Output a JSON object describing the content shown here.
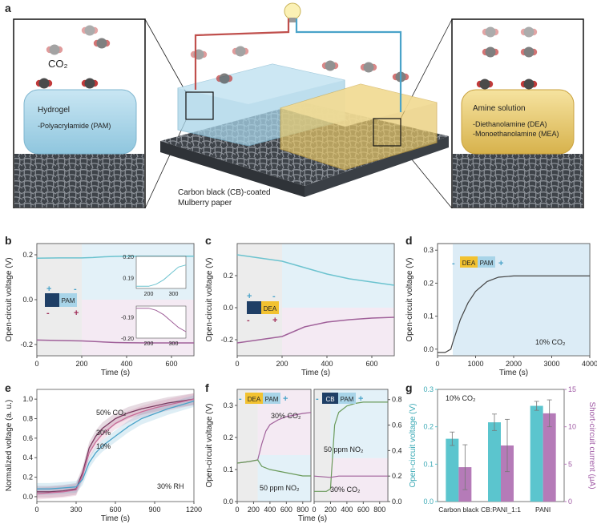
{
  "panel_labels": {
    "a": "a",
    "b": "b",
    "c": "c",
    "d": "d",
    "e": "e",
    "f": "f",
    "g": "g"
  },
  "illustration": {
    "co2_label": "CO₂",
    "hydrogel_title": "Hydrogel",
    "hydrogel_item": "-Polyacrylamide (PAM)",
    "amine_title": "Amine solution",
    "amine_item_1": "-Diethanolamine (DEA)",
    "amine_item_2": "-Monoethanolamine (MEA)",
    "substrate_label_1": "Carbon black (CB)-coated",
    "substrate_label_2": "Mulberry paper",
    "colors": {
      "hydrogel": "#a8d4e8",
      "amine": "#e8c86a",
      "fiber": "#5a5f66",
      "wire_red": "#c0504d",
      "wire_blue": "#4aa3c9"
    }
  },
  "chart_data": [
    {
      "id": "b",
      "type": "line",
      "xlabel": "Time (s)",
      "ylabel": "Open-circuit voltage (V)",
      "xlim": [
        0,
        700
      ],
      "ylim": [
        -0.25,
        0.25
      ],
      "xticks": [
        0,
        200,
        400,
        600
      ],
      "yticks": [
        -0.2,
        0.0,
        0.2
      ],
      "xtick_labels": [
        "0",
        "200",
        "400",
        "600"
      ],
      "ytick_labels": [
        "-0.2",
        "0.0",
        "0.2"
      ],
      "device_label": "PAM",
      "plus": "+",
      "minus": "-",
      "series": [
        {
          "color": "#6cc3cf",
          "x": [
            0,
            100,
            200,
            250,
            300,
            350,
            400,
            500,
            600,
            700
          ],
          "y": [
            0.185,
            0.186,
            0.186,
            0.188,
            0.191,
            0.193,
            0.194,
            0.194,
            0.194,
            0.194
          ]
        },
        {
          "color": "#a0619a",
          "x": [
            0,
            100,
            200,
            250,
            300,
            350,
            400,
            500,
            600,
            700
          ],
          "y": [
            -0.18,
            -0.182,
            -0.184,
            -0.186,
            -0.189,
            -0.191,
            -0.192,
            -0.193,
            -0.193,
            -0.193
          ]
        }
      ],
      "insets": [
        {
          "xlim": [
            150,
            350
          ],
          "ylim": [
            0.185,
            0.2
          ],
          "ytick_labels": [
            "0.19",
            "0.20"
          ],
          "yticks": [
            0.19,
            0.2
          ],
          "xticks": [
            200,
            300
          ],
          "xtick_labels": [
            "200",
            "300"
          ],
          "color": "#6cc3cf",
          "x": [
            150,
            200,
            230,
            260,
            290,
            320,
            350
          ],
          "y": [
            0.186,
            0.186,
            0.187,
            0.189,
            0.192,
            0.195,
            0.196
          ]
        },
        {
          "xlim": [
            150,
            350
          ],
          "ylim": [
            -0.2,
            -0.185
          ],
          "ytick_labels": [
            "-0.19",
            "-0.20"
          ],
          "yticks": [
            -0.19,
            -0.2
          ],
          "xticks": [
            200,
            300
          ],
          "xtick_labels": [
            "200",
            "300"
          ],
          "color": "#a0619a",
          "x": [
            150,
            200,
            230,
            260,
            290,
            320,
            350
          ],
          "y": [
            -0.186,
            -0.186,
            -0.187,
            -0.189,
            -0.192,
            -0.195,
            -0.197
          ]
        }
      ]
    },
    {
      "id": "c",
      "type": "line",
      "xlabel": "Time (s)",
      "ylabel": "Open-circuit voltage (V)",
      "xlim": [
        0,
        700
      ],
      "ylim": [
        -0.3,
        0.4
      ],
      "xticks": [
        0,
        200,
        400,
        600
      ],
      "yticks": [
        -0.2,
        0.0,
        0.2
      ],
      "xtick_labels": [
        "0",
        "200",
        "400",
        "600"
      ],
      "ytick_labels": [
        "-0.2",
        "0.0",
        "0.2"
      ],
      "device_label": "DEA",
      "plus": "+",
      "minus": "-",
      "series": [
        {
          "color": "#6cc3cf",
          "x": [
            0,
            100,
            200,
            300,
            400,
            500,
            600,
            700
          ],
          "y": [
            0.33,
            0.31,
            0.29,
            0.25,
            0.21,
            0.18,
            0.16,
            0.14
          ]
        },
        {
          "color": "#a0619a",
          "x": [
            0,
            100,
            200,
            300,
            400,
            500,
            600,
            700
          ],
          "y": [
            -0.22,
            -0.2,
            -0.18,
            -0.12,
            -0.09,
            -0.075,
            -0.065,
            -0.06
          ]
        }
      ]
    },
    {
      "id": "d",
      "type": "line",
      "xlabel": "Time (s)",
      "ylabel": "Open-circuit voltage (V)",
      "xlim": [
        0,
        4000
      ],
      "ylim": [
        -0.02,
        0.32
      ],
      "xticks": [
        0,
        1000,
        2000,
        3000,
        4000
      ],
      "yticks": [
        0.0,
        0.1,
        0.2,
        0.3
      ],
      "xtick_labels": [
        "0",
        "1000",
        "2000",
        "3000",
        "4000"
      ],
      "ytick_labels": [
        "0.0",
        "0.1",
        "0.2",
        "0.3"
      ],
      "annotation": "10% CO₂",
      "device_label_1": "DEA",
      "device_label_2": "PAM",
      "plus": "+",
      "minus": "-",
      "series": [
        {
          "color": "#444444",
          "x": [
            0,
            200,
            350,
            400,
            600,
            800,
            1000,
            1300,
            1600,
            2000,
            2500,
            3000,
            3500,
            4000
          ],
          "y": [
            -0.01,
            -0.01,
            0.0,
            0.02,
            0.09,
            0.14,
            0.175,
            0.205,
            0.218,
            0.222,
            0.222,
            0.222,
            0.222,
            0.222
          ]
        }
      ]
    },
    {
      "id": "e",
      "type": "line",
      "xlabel": "Time (s)",
      "ylabel": "Normalized voltage (a. u.)",
      "xlim": [
        0,
        1200
      ],
      "ylim": [
        -0.05,
        1.1
      ],
      "xticks": [
        0,
        300,
        600,
        900,
        1200
      ],
      "yticks": [
        0.0,
        0.2,
        0.4,
        0.6,
        0.8,
        1.0
      ],
      "xtick_labels": [
        "0",
        "300",
        "600",
        "900",
        "1200"
      ],
      "ytick_labels": [
        "0.0",
        "0.2",
        "0.4",
        "0.6",
        "0.8",
        "1.0"
      ],
      "annotation": "30% RH",
      "series": [
        {
          "name": "50% CO₂",
          "color": "#7a3a60",
          "x": [
            0,
            100,
            200,
            300,
            350,
            400,
            450,
            500,
            600,
            700,
            800,
            900,
            1000,
            1100,
            1200
          ],
          "y": [
            0.05,
            0.05,
            0.06,
            0.08,
            0.25,
            0.5,
            0.62,
            0.7,
            0.8,
            0.86,
            0.9,
            0.93,
            0.96,
            0.98,
            1.0
          ]
        },
        {
          "name": "30%",
          "color": "#c76b98",
          "x": [
            0,
            100,
            200,
            300,
            350,
            400,
            450,
            500,
            600,
            700,
            800,
            900,
            1000,
            1100,
            1200
          ],
          "y": [
            0.03,
            0.04,
            0.05,
            0.07,
            0.22,
            0.45,
            0.56,
            0.64,
            0.75,
            0.82,
            0.87,
            0.91,
            0.94,
            0.97,
            1.0
          ]
        },
        {
          "name": "10%",
          "color": "#4aa3c9",
          "x": [
            0,
            100,
            200,
            300,
            350,
            400,
            450,
            500,
            600,
            700,
            800,
            900,
            1000,
            1100,
            1200
          ],
          "y": [
            0.08,
            0.08,
            0.09,
            0.1,
            0.18,
            0.35,
            0.45,
            0.52,
            0.62,
            0.72,
            0.8,
            0.85,
            0.9,
            0.94,
            0.98
          ]
        }
      ]
    },
    {
      "id": "f",
      "type": "line",
      "xlabel": "Time (s)",
      "ylabel": "Open-circuit voltage (V)",
      "left": {
        "xlim": [
          0,
          900
        ],
        "ylim": [
          0.0,
          0.35
        ],
        "xticks": [
          0,
          200,
          400,
          600,
          800
        ],
        "xtick_labels": [
          "0",
          "200",
          "400",
          "600",
          "800"
        ],
        "yticks": [
          0.0,
          0.1,
          0.2,
          0.3
        ],
        "ytick_labels": [
          "0.0",
          "0.1",
          "0.2",
          "0.3"
        ],
        "annotation_top": "30% CO₂",
        "annotation_bottom": "50 ppm NO₂",
        "device_label_1": "DEA",
        "device_label_2": "PAM",
        "series": [
          {
            "color": "#a0619a",
            "x": [
              0,
              150,
              250,
              300,
              350,
              400,
              500,
              600,
              700,
              800,
              900
            ],
            "y": [
              0.12,
              0.125,
              0.13,
              0.18,
              0.22,
              0.24,
              0.255,
              0.265,
              0.27,
              0.275,
              0.278
            ]
          },
          {
            "color": "#6a9a5a",
            "x": [
              0,
              150,
              250,
              300,
              400,
              500,
              600,
              700,
              800,
              900
            ],
            "y": [
              0.12,
              0.125,
              0.13,
              0.11,
              0.1,
              0.095,
              0.09,
              0.085,
              0.08,
              0.08
            ]
          }
        ]
      },
      "right": {
        "xlim": [
          0,
          900
        ],
        "ylim": [
          0.0,
          0.88
        ],
        "xticks": [
          0,
          200,
          400,
          600,
          800
        ],
        "xtick_labels": [
          "0",
          "200",
          "400",
          "600",
          "800"
        ],
        "yticks": [
          0.0,
          0.2,
          0.4,
          0.6,
          0.8
        ],
        "ytick_labels": [
          "0.0",
          "0.2",
          "0.4",
          "0.6",
          "0.8"
        ],
        "annotation_top": "50 ppm NO₂",
        "annotation_bottom": "30% CO₂",
        "device_label_1": "CB",
        "device_label_2": "PAM",
        "series": [
          {
            "color": "#6a9a5a",
            "x": [
              0,
              150,
              200,
              250,
              300,
              400,
              500,
              600,
              700,
              800,
              900
            ],
            "y": [
              0.08,
              0.08,
              0.1,
              0.6,
              0.7,
              0.75,
              0.77,
              0.78,
              0.78,
              0.78,
              0.78
            ]
          },
          {
            "color": "#a0619a",
            "x": [
              0,
              200,
              300,
              400,
              500,
              600,
              700,
              800,
              900
            ],
            "y": [
              0.2,
              0.19,
              0.2,
              0.2,
              0.2,
              0.2,
              0.2,
              0.2,
              0.2
            ]
          }
        ]
      }
    },
    {
      "id": "g",
      "type": "bar",
      "annotation": "10% CO₂",
      "categories": [
        "Carbon black",
        "CB:PANI_1:1",
        "PANI"
      ],
      "ylabel_left": "Open-circuit voltage (V)",
      "ylabel_right": "Short-circuit current (μA)",
      "ylim_left": [
        0,
        0.3
      ],
      "ylim_right": [
        0,
        15
      ],
      "yticks_left": [
        0.0,
        0.1,
        0.2,
        0.3
      ],
      "ytick_labels_left": [
        "0.0",
        "0.1",
        "0.2",
        "0.3"
      ],
      "yticks_right": [
        0,
        5,
        10,
        15
      ],
      "ytick_labels_right": [
        "0",
        "5",
        "10",
        "15"
      ],
      "series": [
        {
          "name": "Open-circuit voltage",
          "axis": "left",
          "color": "#5bc5ce",
          "values": [
            0.168,
            0.212,
            0.256
          ],
          "err": [
            0.018,
            0.022,
            0.012
          ]
        },
        {
          "name": "Short-circuit current",
          "axis": "right",
          "color": "#b57bb8",
          "values": [
            4.6,
            7.5,
            11.8
          ],
          "err": [
            3.0,
            3.5,
            1.8
          ]
        }
      ]
    }
  ]
}
